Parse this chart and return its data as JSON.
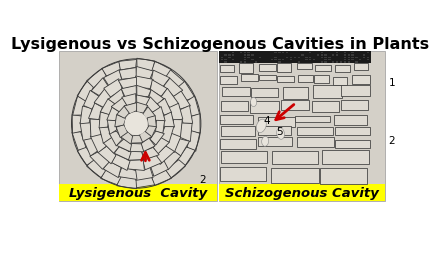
{
  "title": "Lysigenous vs Schizogenous Cavities in Plants",
  "title_fontsize": 11.5,
  "title_fontweight": "bold",
  "bg_color": "#ffffff",
  "panel_bg_left": "#c8c4b8",
  "panel_bg_right": "#c8c4b8",
  "label_left": "Lysigenous  Cavity",
  "label_right": "Schizogenous Cavity",
  "label_bg": "#ffff00",
  "label_fontsize": 9.5,
  "label_style": "italic",
  "label_fontweight": "bold",
  "num2_left": "2",
  "num1_right": "1",
  "num2_right": "2",
  "num4_right": "4",
  "num5_right": "5",
  "arrow_color": "#cc0000",
  "cell_face": "#e8e4dc",
  "cell_edge": "#444444",
  "dark_band_color": "#1a1a1a",
  "line_color": "#333333"
}
